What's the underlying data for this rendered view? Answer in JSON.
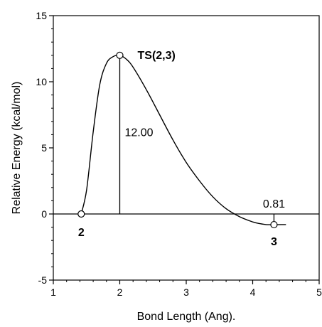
{
  "chart_data": {
    "type": "line",
    "xlabel": "Bond Length (Ang).",
    "ylabel": "Relative Energy (kcal/mol)",
    "xlim": [
      1,
      5
    ],
    "ylim": [
      -5,
      15
    ],
    "x_ticks": [
      1,
      2,
      3,
      4,
      5
    ],
    "x_tick_labels": [
      "1",
      "2",
      "3",
      "4",
      "5"
    ],
    "y_ticks": [
      -5,
      0,
      5,
      10,
      15
    ],
    "y_tick_labels": [
      "-5",
      "0",
      "5",
      "10",
      "15"
    ],
    "grid": false,
    "baseline_y": 0,
    "series": [
      {
        "x": [
          1.42,
          1.5,
          1.6,
          1.7,
          1.8,
          1.9,
          2.0,
          2.1,
          2.2,
          2.4,
          2.6,
          2.8,
          3.0,
          3.2,
          3.4,
          3.6,
          3.8,
          4.0,
          4.1,
          4.2,
          4.32,
          4.5
        ],
        "values": [
          0,
          1.8,
          6.2,
          9.8,
          11.4,
          11.9,
          12.0,
          11.7,
          11.1,
          9.4,
          7.5,
          5.6,
          3.9,
          2.5,
          1.3,
          0.4,
          -0.2,
          -0.6,
          -0.72,
          -0.8,
          -0.81,
          -0.8
        ]
      }
    ],
    "points": [
      {
        "label": "2",
        "x": 1.42,
        "y": 0,
        "label_pos": "below-left"
      },
      {
        "label": "TS(2,3)",
        "x": 2.0,
        "y": 12.0,
        "label_pos": "right"
      },
      {
        "label": "3",
        "x": 4.32,
        "y": -0.81,
        "label_pos": "below"
      }
    ],
    "annotations": [
      {
        "text": "12.00",
        "x": 2.0,
        "from_y": 0,
        "to_y": 12.0
      },
      {
        "text": "0.81",
        "x": 4.32,
        "from_y": -0.81,
        "to_y": 0
      }
    ]
  }
}
